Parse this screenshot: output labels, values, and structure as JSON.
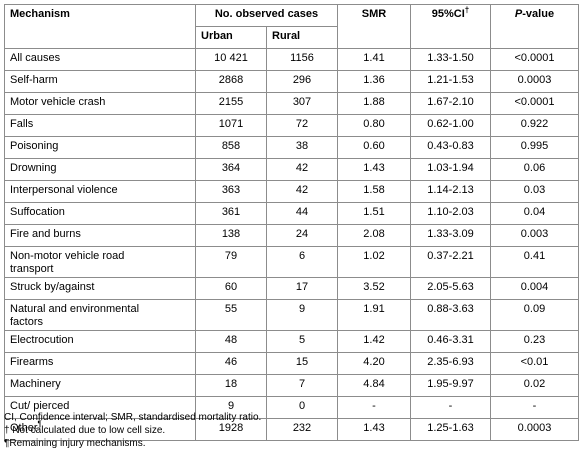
{
  "table": {
    "header": {
      "mechanism": "Mechanism",
      "observed": "No. observed cases",
      "urban": "Urban",
      "rural": "Rural",
      "smr": "SMR",
      "ci": "95%CI",
      "ci_mark": "†",
      "p_italic": "P",
      "p_rest": "-value"
    },
    "rows": [
      [
        "All causes",
        "10 421",
        "1156",
        "1.41",
        "1.33-1.50",
        "<0.0001"
      ],
      [
        "Self-harm",
        "2868",
        "296",
        "1.36",
        "1.21-1.53",
        "0.0003"
      ],
      [
        "Motor vehicle crash",
        "2155",
        "307",
        "1.88",
        "1.67-2.10",
        "<0.0001"
      ],
      [
        "Falls",
        "1071",
        "72",
        "0.80",
        "0.62-1.00",
        "0.922"
      ],
      [
        "Poisoning",
        "858",
        "38",
        "0.60",
        "0.43-0.83",
        "0.995"
      ],
      [
        "Drowning",
        "364",
        "42",
        "1.43",
        "1.03-1.94",
        "0.06"
      ],
      [
        "Interpersonal violence",
        "363",
        "42",
        "1.58",
        "1.14-2.13",
        "0.03"
      ],
      [
        "Suffocation",
        "361",
        "44",
        "1.51",
        "1.10-2.03",
        "0.04"
      ],
      [
        "Fire and burns",
        "138",
        "24",
        "2.08",
        "1.33-3.09",
        "0.003"
      ],
      [
        "Non-motor vehicle road transport",
        "79",
        "6",
        "1.02",
        "0.37-2.21",
        "0.41"
      ],
      [
        "Struck by/against",
        "60",
        "17",
        "3.52",
        "2.05-5.63",
        "0.004"
      ],
      [
        "Natural and environmental factors",
        "55",
        "9",
        "1.91",
        "0.88-3.63",
        "0.09"
      ],
      [
        "Electrocution",
        "48",
        "5",
        "1.42",
        "0.46-3.31",
        "0.23"
      ],
      [
        "Firearms",
        "46",
        "15",
        "4.20",
        "2.35-6.93",
        "<0.01"
      ],
      [
        "Machinery",
        "18",
        "7",
        "4.84",
        "1.95-9.97",
        "0.02"
      ],
      [
        "Cut/ pierced",
        "9",
        "0",
        "-",
        "-",
        "-"
      ],
      [
        "Other",
        "1928",
        "232",
        "1.43",
        "1.25-1.63",
        "0.0003"
      ]
    ],
    "other_mark": "¶"
  },
  "footnotes": [
    "CI, Confidence interval; SMR, standardised mortality ratio.",
    "† Not calculated due to low cell size.",
    "¶Remaining injury mechanisms."
  ]
}
